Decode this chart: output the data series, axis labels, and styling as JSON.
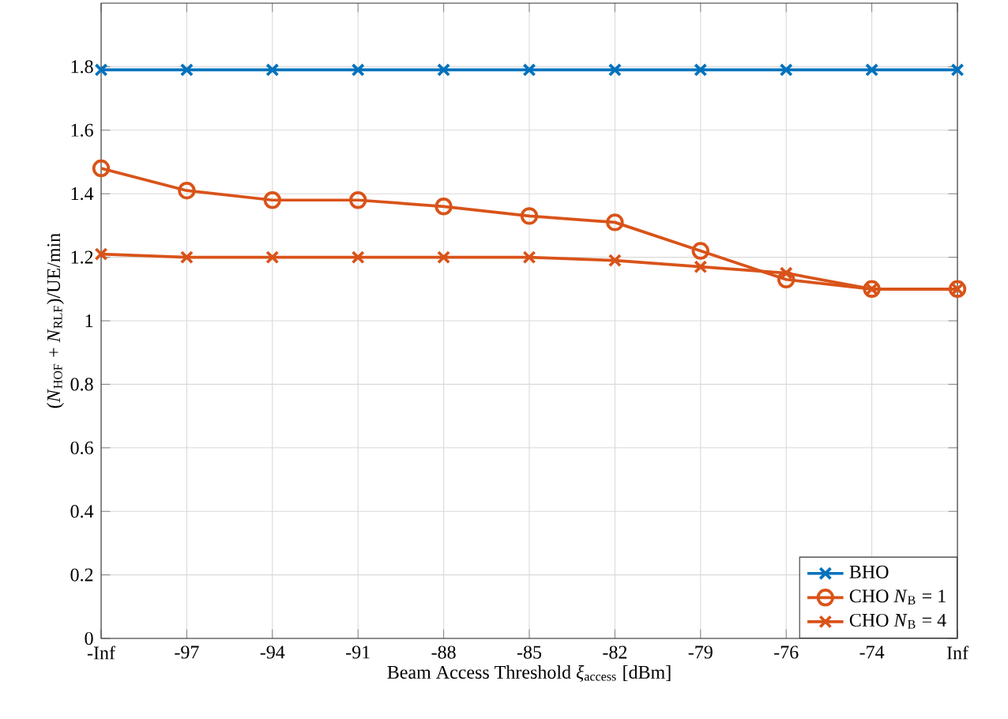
{
  "chart_data": {
    "type": "line",
    "xlabel": "Beam Access Threshold *ξ*$_{access}$ [dBm]",
    "ylabel": "(*N*$_{HOF}$ + *N*$_{RLF}$)/UE/min",
    "categories": [
      "-Inf",
      "-97",
      "-94",
      "-91",
      "-88",
      "-85",
      "-82",
      "-79",
      "-76",
      "-74",
      "Inf"
    ],
    "series": [
      {
        "name": "BHO",
        "color": "#0072bd",
        "marker": "cross",
        "values": [
          1.79,
          1.79,
          1.79,
          1.79,
          1.79,
          1.79,
          1.79,
          1.79,
          1.79,
          1.79,
          1.79
        ]
      },
      {
        "name": "CHO *N*$_{B}$ = 1",
        "color": "#d95319",
        "marker": "circle",
        "values": [
          1.48,
          1.41,
          1.38,
          1.38,
          1.36,
          1.33,
          1.31,
          1.22,
          1.13,
          1.1,
          1.1
        ]
      },
      {
        "name": "CHO *N*$_{B}$ = 4",
        "color": "#d95319",
        "marker": "cross",
        "values": [
          1.21,
          1.2,
          1.2,
          1.2,
          1.2,
          1.2,
          1.19,
          1.17,
          1.15,
          1.1,
          1.1
        ]
      }
    ],
    "ylim": [
      0,
      2
    ],
    "yticks": [
      0,
      0.2,
      0.4,
      0.6,
      0.8,
      1,
      1.2,
      1.4,
      1.6,
      1.8
    ],
    "grid": true,
    "legend": "bottom right",
    "line_style": "solid"
  }
}
